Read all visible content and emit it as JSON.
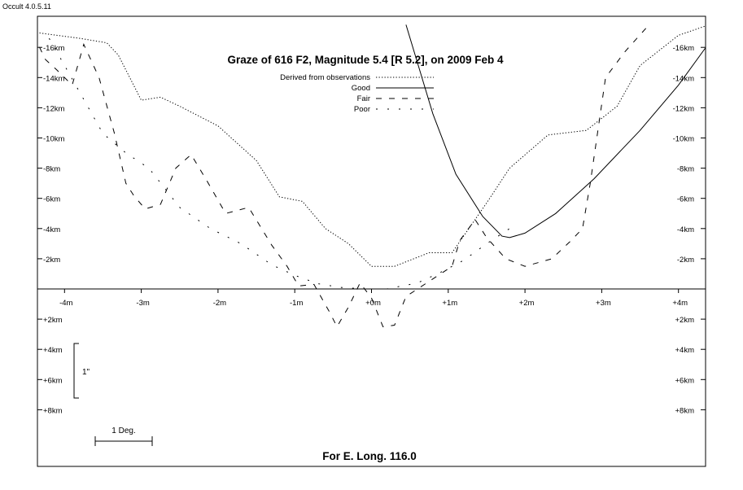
{
  "app": {
    "version": "Occult 4.0.5.11"
  },
  "chart_data": {
    "type": "line",
    "title": "Graze of  616 F2,  Magnitude 5.4 [R 5.2],  on 2009 Feb  4",
    "footer": "For E. Long. 116.0",
    "x_unit": "minutes of time",
    "y_unit": "km",
    "xlim": [
      -4.4,
      4.4
    ],
    "ylim": [
      -17.5,
      11.5
    ],
    "x_ticks": [
      -4,
      -3,
      -2,
      -1,
      0,
      1,
      2,
      3,
      4
    ],
    "x_tick_labels": [
      "-4m",
      "-3m",
      "-2m",
      "-1m",
      "+0m",
      "+1m",
      "+2m",
      "+3m",
      "+4m"
    ],
    "y_ticks": [
      -16,
      -14,
      -12,
      -10,
      -8,
      -6,
      -4,
      -2,
      2,
      4,
      6,
      8
    ],
    "y_tick_labels": [
      "-16km",
      "-14km",
      "-12km",
      "-10km",
      "-8km",
      "-6km",
      "-4km",
      "-2km",
      "+2km",
      "+4km",
      "+6km",
      "+8km"
    ],
    "legend": {
      "placement": "top-center",
      "entries": [
        {
          "label": "Derived from observations",
          "style": "dotted"
        },
        {
          "label": "Good",
          "style": "solid"
        },
        {
          "label": "Fair",
          "style": "dashed"
        },
        {
          "label": "Poor",
          "style": "long-dash"
        }
      ]
    },
    "scale_bars": {
      "arcsec_label": "1\"",
      "degree_label": "1 Deg."
    },
    "grid": false,
    "series": [
      {
        "name": "Derived from observations",
        "style": "dotted",
        "x": [
          -4.4,
          -3.8,
          -3.45,
          -3.3,
          -3.0,
          -2.75,
          -2.5,
          -2.0,
          -1.5,
          -1.2,
          -0.9,
          -0.6,
          -0.3,
          0.0,
          0.3,
          0.75,
          1.05,
          1.5,
          1.8,
          2.3,
          2.8,
          3.2,
          3.5,
          4.0,
          4.4
        ],
        "y": [
          -17.0,
          -16.6,
          -16.3,
          -15.5,
          -12.5,
          -12.7,
          -12.1,
          -10.8,
          -8.5,
          -6.1,
          -5.8,
          -4.0,
          -3.0,
          -1.5,
          -1.5,
          -2.4,
          -2.4,
          -5.7,
          -8.0,
          -10.2,
          -10.5,
          -12.1,
          -14.8,
          -16.8,
          -17.5
        ]
      },
      {
        "name": "Good",
        "style": "solid",
        "x": [
          0.45,
          0.8,
          1.1,
          1.45,
          1.7,
          1.8,
          2.0,
          2.4,
          2.9,
          3.5,
          4.0,
          4.4
        ],
        "y": [
          -17.5,
          -11.6,
          -7.6,
          -4.8,
          -3.5,
          -3.4,
          -3.7,
          -5.0,
          -7.3,
          -10.5,
          -13.5,
          -16.3
        ]
      },
      {
        "name": "Fair",
        "style": "dashed",
        "x": [
          -4.4,
          -4.25,
          -4.1,
          -3.9,
          -3.75,
          -3.55,
          -3.35,
          -3.2,
          -3.1,
          -2.95,
          -2.75,
          -2.55,
          -2.35,
          -2.15,
          -1.9,
          -1.6,
          -1.3,
          -1.1,
          -0.95,
          -0.75,
          -0.55,
          -0.45,
          -0.3,
          -0.15,
          0.0,
          0.15,
          0.3,
          0.45,
          1.05,
          1.15,
          1.35,
          1.5,
          1.75,
          2.0,
          2.35,
          2.6,
          2.75,
          2.85,
          3.05,
          3.3,
          3.6
        ],
        "y": [
          -16.8,
          -15.2,
          -14.5,
          -13.5,
          -16.2,
          -14.0,
          -10.3,
          -7.0,
          -6.2,
          -5.3,
          -5.6,
          -8.0,
          -8.9,
          -7.2,
          -5.0,
          -5.4,
          -2.9,
          -1.5,
          -0.2,
          -0.3,
          1.5,
          2.5,
          1.2,
          -0.4,
          0.6,
          2.5,
          2.4,
          0.5,
          -1.5,
          -3.2,
          -4.6,
          -3.4,
          -2.0,
          -1.5,
          -2.0,
          -3.2,
          -4.0,
          -7.0,
          -14.0,
          -15.7,
          -17.4
        ]
      },
      {
        "name": "Poor",
        "style": "long-dash",
        "x": [
          -4.2,
          -3.8,
          -3.5,
          -3.2,
          -2.9,
          -2.5,
          -2.1,
          -1.7,
          -1.3,
          -1.0,
          -0.7,
          -0.4,
          -0.1,
          0.2,
          0.6,
          0.9,
          1.2,
          1.5,
          1.8
        ],
        "y": [
          -16.6,
          -13.0,
          -10.3,
          -9.0,
          -8.0,
          -5.4,
          -4.0,
          -3.0,
          -1.6,
          -0.9,
          -0.35,
          -0.1,
          0.0,
          0.0,
          -0.4,
          -1.1,
          -1.9,
          -3.0,
          -4.0
        ]
      }
    ]
  }
}
